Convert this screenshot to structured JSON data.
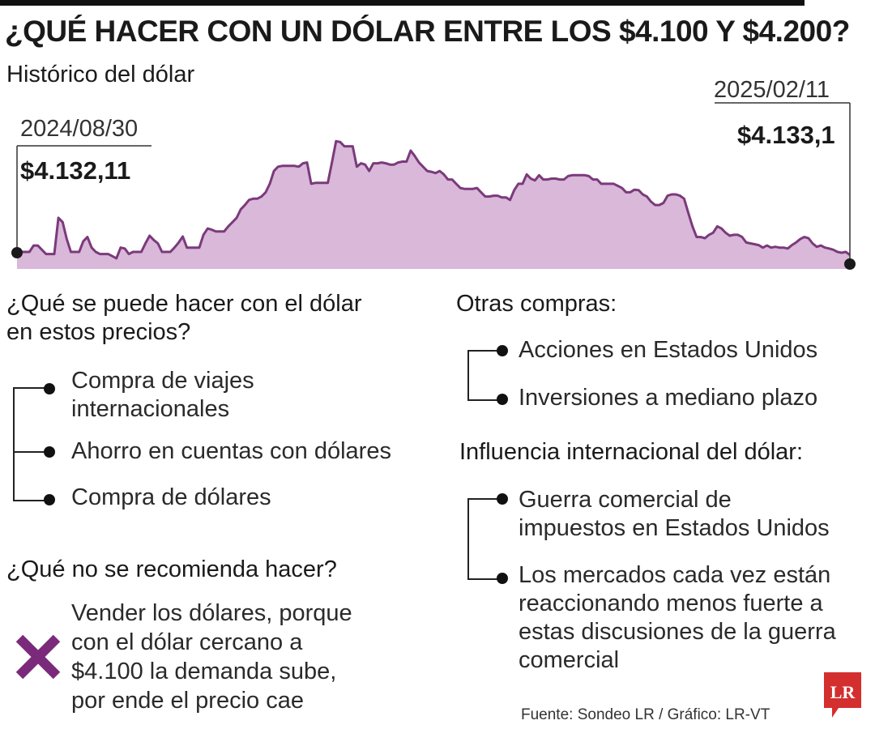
{
  "title": "¿QUÉ HACER CON UN DÓLAR ENTRE LOS $4.100 Y $4.200?",
  "subtitle": "Histórico del dólar",
  "chart_data": {
    "type": "area",
    "start_date": "2024/08/30",
    "start_value": "$4.132,11",
    "end_date": "2025/02/11",
    "end_value": "$4.133,1",
    "fill_color": "#d9b8d9",
    "line_color": "#7b3a7b",
    "y_range": [
      4100,
      4450
    ],
    "values": [
      4132,
      4140,
      4140,
      4140,
      4155,
      4155,
      4145,
      4135,
      4135,
      4135,
      4220,
      4210,
      4170,
      4140,
      4140,
      4140,
      4165,
      4175,
      4150,
      4140,
      4135,
      4135,
      4135,
      4130,
      4125,
      4150,
      4148,
      4135,
      4140,
      4140,
      4140,
      4160,
      4178,
      4168,
      4160,
      4140,
      4140,
      4140,
      4150,
      4162,
      4176,
      4150,
      4150,
      4150,
      4150,
      4180,
      4195,
      4192,
      4188,
      4188,
      4188,
      4200,
      4210,
      4220,
      4240,
      4250,
      4262,
      4265,
      4265,
      4270,
      4280,
      4300,
      4330,
      4340,
      4342,
      4342,
      4342,
      4342,
      4340,
      4348,
      4350,
      4300,
      4302,
      4302,
      4302,
      4302,
      4350,
      4400,
      4398,
      4388,
      4388,
      4388,
      4340,
      4348,
      4345,
      4330,
      4348,
      4348,
      4350,
      4348,
      4345,
      4345,
      4350,
      4352,
      4352,
      4378,
      4365,
      4350,
      4340,
      4330,
      4328,
      4325,
      4330,
      4322,
      4310,
      4310,
      4300,
      4290,
      4288,
      4288,
      4288,
      4290,
      4280,
      4270,
      4270,
      4272,
      4272,
      4268,
      4268,
      4262,
      4285,
      4300,
      4300,
      4322,
      4312,
      4308,
      4320,
      4310,
      4310,
      4312,
      4312,
      4310,
      4310,
      4318,
      4320,
      4320,
      4320,
      4320,
      4318,
      4310,
      4310,
      4300,
      4300,
      4300,
      4300,
      4295,
      4290,
      4280,
      4280,
      4286,
      4285,
      4275,
      4270,
      4258,
      4250,
      4250,
      4255,
      4272,
      4275,
      4275,
      4272,
      4265,
      4232,
      4200,
      4175,
      4175,
      4172,
      4180,
      4185,
      4200,
      4195,
      4185,
      4178,
      4180,
      4180,
      4175,
      4162,
      4160,
      4158,
      4156,
      4150,
      4155,
      4150,
      4152,
      4150,
      4150,
      4148,
      4156,
      4162,
      4170,
      4175,
      4172,
      4160,
      4152,
      4155,
      4150,
      4148,
      4145,
      4140,
      4138,
      4140,
      4133
    ]
  },
  "left_column": {
    "heading": "¿Qué se puede hacer con el dólar en estos precios?",
    "heading_line1": "¿Qué se puede hacer con el dólar",
    "heading_line2": "en estos precios?",
    "items": [
      {
        "line1": "Compra de viajes",
        "line2": "internacionales"
      },
      {
        "line1": "Ahorro en cuentas con dólares"
      },
      {
        "line1": "Compra de dólares"
      }
    ],
    "not_recommended_heading": "¿Qué no se recomienda hacer?",
    "not_recommended": [
      "Vender los dólares, porque",
      "con el dólar cercano a",
      "$4.100 la demanda sube,",
      "por ende el precio cae"
    ]
  },
  "right_column": {
    "heading1": "Otras compras:",
    "items1": [
      "Acciones en Estados Unidos",
      "Inversiones a mediano plazo"
    ],
    "heading2": "Influencia internacional del dólar:",
    "items2": [
      {
        "line1": "Guerra comercial de",
        "line2": "impuestos en Estados Unidos"
      },
      {
        "line1": "Los mercados cada vez están",
        "line2": "reaccionando menos fuerte a",
        "line3": "estas discusiones de la guerra",
        "line4": "comercial"
      }
    ]
  },
  "source": "Fuente: Sondeo LR / Gráfico: LR-VT",
  "logo_text": "LR",
  "colors": {
    "accent_purple": "#7b2a7b",
    "logo_red": "#d32f2f"
  }
}
